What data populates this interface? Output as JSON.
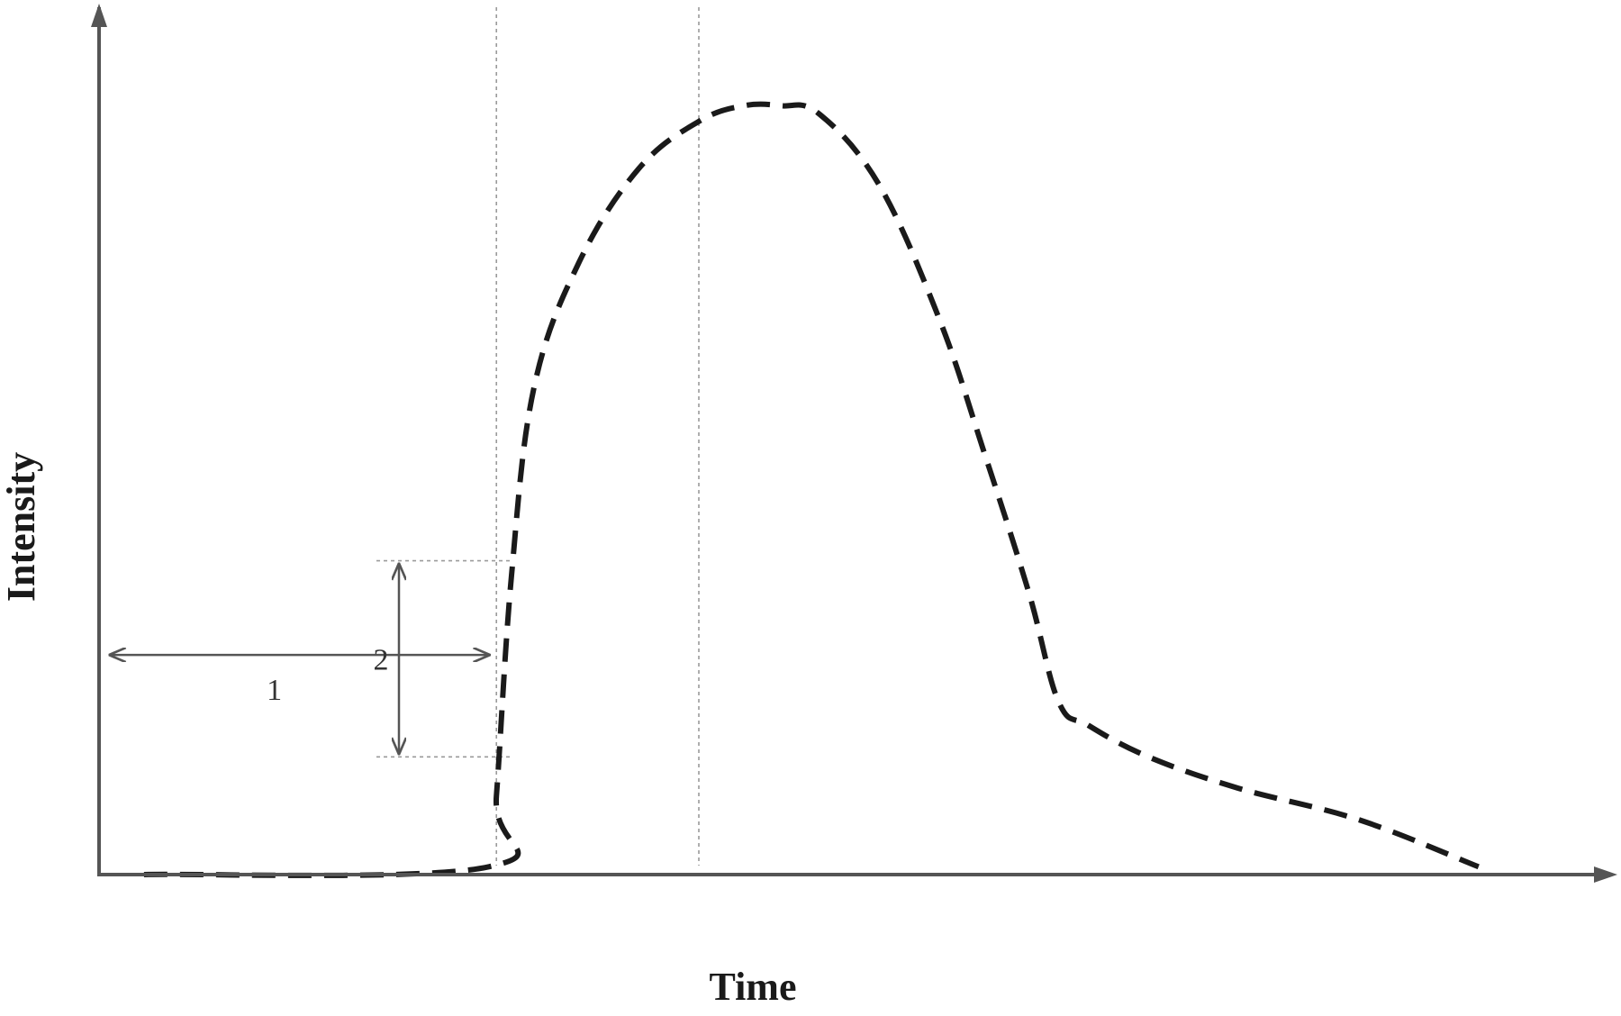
{
  "chart_data": {
    "type": "line",
    "title": "",
    "xlabel": "Time",
    "ylabel": "Intensity",
    "xlim": [
      0,
      100
    ],
    "ylim": [
      0,
      100
    ],
    "grid": false,
    "series": [
      {
        "style": "dashed",
        "color": "#1a1a1a",
        "x": [
          3,
          26,
          26.5,
          27.5,
          29,
          32,
          36,
          40,
          43,
          45.5,
          48,
          52,
          56,
          59,
          62,
          64,
          66,
          70,
          76,
          84,
          92
        ],
        "y": [
          0,
          1,
          10,
          38,
          62,
          78,
          90,
          96,
          98,
          98,
          97,
          88,
          71,
          54,
          36,
          22,
          19,
          15,
          11,
          7,
          1
        ]
      }
    ],
    "reference_lines": [
      {
        "orientation": "vertical",
        "x": 26.5,
        "style": "dotted"
      },
      {
        "orientation": "vertical",
        "x": 40,
        "style": "dotted"
      },
      {
        "orientation": "horizontal",
        "y": 40,
        "style": "dotted"
      },
      {
        "orientation": "horizontal",
        "y": 15,
        "style": "dotted"
      }
    ],
    "annotations": [
      {
        "label": "1",
        "kind": "horizontal double arrow",
        "x_from": 0.5,
        "x_to": 26,
        "y": 28
      },
      {
        "label": "2",
        "kind": "vertical double arrow",
        "x": 20,
        "y_from": 15,
        "y_to": 40
      }
    ],
    "colors": {
      "axis": "#555555",
      "curve": "#1a1a1a",
      "guide": "#9a9a9a",
      "arrow": "#555555"
    }
  }
}
